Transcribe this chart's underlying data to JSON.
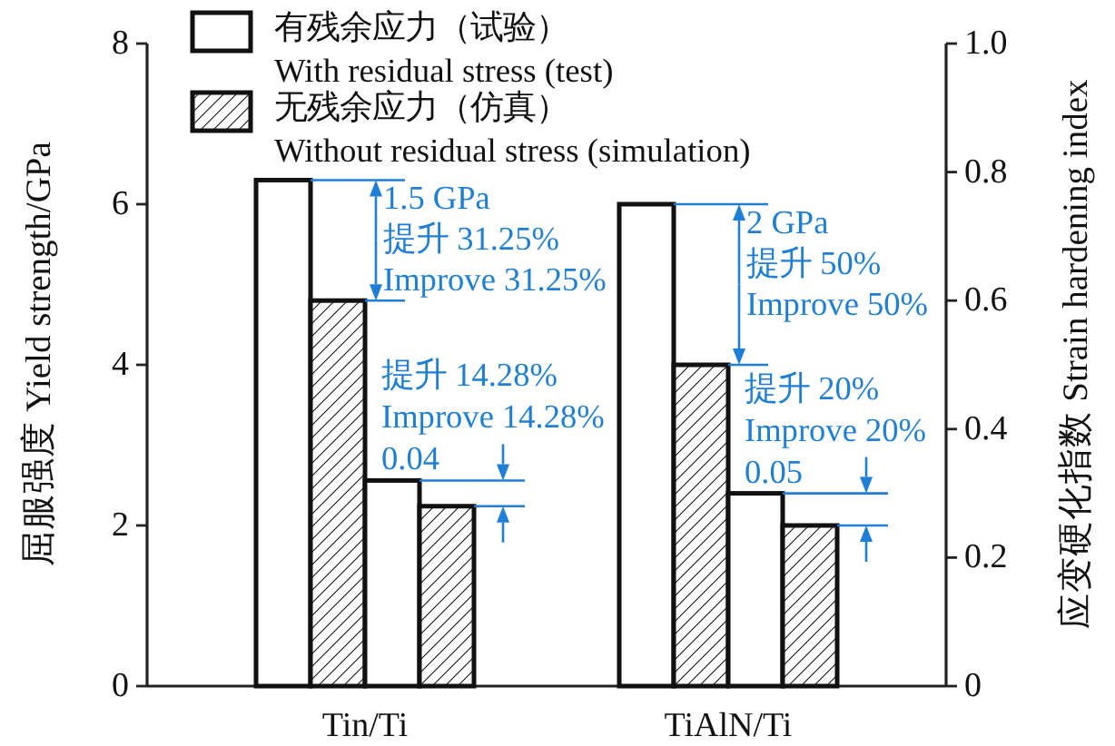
{
  "chart_data": {
    "type": "bar",
    "ylabel": "屈服强度 Yield strength/GPa",
    "y2label": "应变硬化指数 Strain hardening index",
    "categories": [
      "Tin/Ti",
      "TiAlN/Ti"
    ],
    "series": [
      {
        "name": "有残余应力（试验）\nWith residual stress (test)",
        "color": "#ffffff",
        "values": [
          6.3,
          6.0
        ]
      },
      {
        "name": "无残余应力（仿真）\nWithout residual stress (simulation)",
        "color": "#111111",
        "values": [
          4.8,
          4.0
        ]
      },
      {
        "color": "#ffffff",
        "axis": "y2",
        "values": [
          0.32,
          0.3
        ]
      },
      {
        "color": "#111111",
        "axis": "y2",
        "values": [
          0.28,
          0.25
        ]
      }
    ],
    "ylim": [
      0,
      8
    ],
    "yticks": [
      0,
      2,
      4,
      6,
      8
    ],
    "y2lim": [
      0,
      1
    ],
    "y2ticks": [
      0,
      0.2,
      0.4,
      0.6,
      0.8,
      {
        "value": 1,
        "label": "1.0"
      }
    ],
    "legend": "top left",
    "annotations": [
      {
        "text": "1.5 GPa\n提升 31.25%\nImprove 31.25%",
        "x": "Tin/Ti",
        "y": 4.8
      },
      "提升 14.28%\nImprove 14.28%\n0.04",
      {
        "text": "2 GPa\n提升 50%\nImprove 50%",
        "x": "TiAlN/Ti",
        "y": 4.0
      },
      "提升 20%\nImprove 20%\n0.05"
    ]
  }
}
